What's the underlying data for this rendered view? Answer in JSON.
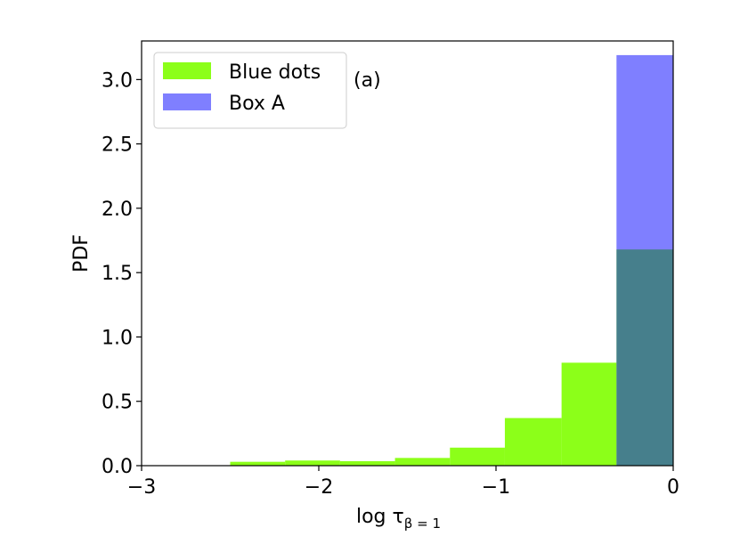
{
  "chart_data": {
    "type": "bar",
    "title": "",
    "xlabel": "log τ",
    "xlabel_subscript": "β = 1",
    "ylabel": "PDF",
    "xlim": [
      -3,
      0
    ],
    "ylim": [
      0,
      3.3
    ],
    "xticks": [
      -3,
      -2,
      -1,
      0
    ],
    "xtick_labels": [
      "−3",
      "−2",
      "−1",
      "0"
    ],
    "yticks": [
      0.0,
      0.5,
      1.0,
      1.5,
      2.0,
      2.5,
      3.0
    ],
    "ytick_labels": [
      "0.0",
      "0.5",
      "1.0",
      "1.5",
      "2.0",
      "2.5",
      "3.0"
    ],
    "grid": false,
    "legend_position": "top-left",
    "annotation": "(a)",
    "series": [
      {
        "name": "Blue dots",
        "color": "#7fff00",
        "bins": [
          {
            "x0": -2.5,
            "x1": -2.19,
            "value": 0.03
          },
          {
            "x0": -2.19,
            "x1": -1.88,
            "value": 0.04
          },
          {
            "x0": -1.88,
            "x1": -1.57,
            "value": 0.035
          },
          {
            "x0": -1.57,
            "x1": -1.26,
            "value": 0.06
          },
          {
            "x0": -1.26,
            "x1": -0.95,
            "value": 0.14
          },
          {
            "x0": -0.95,
            "x1": -0.63,
            "value": 0.37
          },
          {
            "x0": -0.63,
            "x1": -0.32,
            "value": 0.8
          },
          {
            "x0": -0.32,
            "x1": 0.0,
            "value": 1.68
          }
        ]
      },
      {
        "name": "Box A",
        "color": "#0000ff",
        "bins": [
          {
            "x0": -0.32,
            "x1": 0.0,
            "value": 3.19
          }
        ]
      }
    ]
  }
}
